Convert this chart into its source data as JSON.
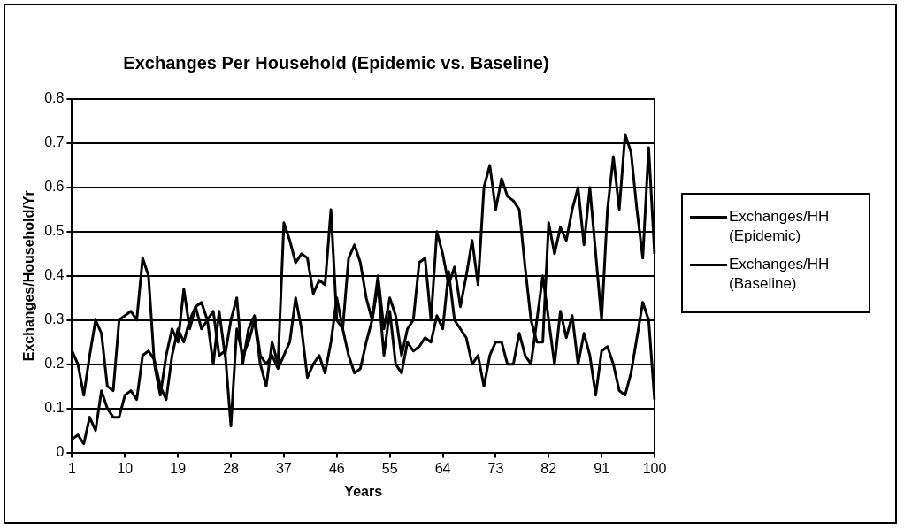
{
  "chart_data": {
    "type": "line",
    "title": "Exchanges Per Household (Epidemic vs. Baseline)",
    "xlabel": "Years",
    "ylabel": "Exchanges/Household/Yr",
    "categories": [
      "1",
      null,
      null,
      null,
      null,
      null,
      null,
      null,
      null,
      "10",
      null,
      null,
      null,
      null,
      null,
      null,
      null,
      null,
      "19",
      null,
      null,
      null,
      null,
      null,
      null,
      null,
      null,
      "28",
      null,
      null,
      null,
      null,
      null,
      null,
      null,
      null,
      "37",
      null,
      null,
      null,
      null,
      null,
      null,
      null,
      null,
      "46",
      null,
      null,
      null,
      null,
      null,
      null,
      null,
      null,
      "55",
      null,
      null,
      null,
      null,
      null,
      null,
      null,
      null,
      "64",
      null,
      null,
      null,
      null,
      null,
      null,
      null,
      null,
      "73",
      null,
      null,
      null,
      null,
      null,
      null,
      null,
      null,
      "82",
      null,
      null,
      null,
      null,
      null,
      null,
      null,
      null,
      "91",
      null,
      null,
      null,
      null,
      null,
      null,
      null,
      null,
      "100"
    ],
    "series": [
      {
        "name": "Exchanges/HH (Epidemic)",
        "color": "#000000",
        "values": [
          0.03,
          0.04,
          0.02,
          0.08,
          0.05,
          0.14,
          0.1,
          0.08,
          0.08,
          0.13,
          0.14,
          0.12,
          0.22,
          0.23,
          0.21,
          0.15,
          0.12,
          0.22,
          0.28,
          0.25,
          0.3,
          0.33,
          0.28,
          0.3,
          0.32,
          0.22,
          0.23,
          0.06,
          0.28,
          0.22,
          0.25,
          0.3,
          0.2,
          0.15,
          0.25,
          0.2,
          0.52,
          0.48,
          0.43,
          0.45,
          0.44,
          0.36,
          0.39,
          0.38,
          0.55,
          0.3,
          0.28,
          0.44,
          0.47,
          0.43,
          0.35,
          0.3,
          0.4,
          0.28,
          0.35,
          0.31,
          0.22,
          0.28,
          0.3,
          0.43,
          0.44,
          0.3,
          0.5,
          0.45,
          0.38,
          0.42,
          0.33,
          0.4,
          0.48,
          0.38,
          0.6,
          0.65,
          0.55,
          0.62,
          0.58,
          0.57,
          0.55,
          0.42,
          0.3,
          0.25,
          0.25,
          0.52,
          0.45,
          0.51,
          0.48,
          0.55,
          0.6,
          0.47,
          0.6,
          0.45,
          0.3,
          0.55,
          0.67,
          0.55,
          0.72,
          0.68,
          0.55,
          0.44,
          0.69,
          0.45
        ]
      },
      {
        "name": "Exchanges/HH (Baseline)",
        "color": "#000000",
        "values": [
          0.23,
          0.2,
          0.13,
          0.22,
          0.3,
          0.27,
          0.15,
          0.14,
          0.3,
          0.31,
          0.32,
          0.3,
          0.44,
          0.4,
          0.2,
          0.13,
          0.22,
          0.28,
          0.25,
          0.37,
          0.28,
          0.33,
          0.34,
          0.3,
          0.2,
          0.32,
          0.22,
          0.3,
          0.35,
          0.2,
          0.28,
          0.31,
          0.22,
          0.2,
          0.22,
          0.19,
          0.22,
          0.25,
          0.35,
          0.28,
          0.17,
          0.2,
          0.22,
          0.18,
          0.25,
          0.35,
          0.28,
          0.22,
          0.18,
          0.19,
          0.25,
          0.3,
          0.38,
          0.22,
          0.32,
          0.2,
          0.18,
          0.25,
          0.23,
          0.24,
          0.26,
          0.25,
          0.31,
          0.28,
          0.41,
          0.3,
          0.28,
          0.26,
          0.2,
          0.22,
          0.15,
          0.22,
          0.25,
          0.25,
          0.2,
          0.2,
          0.27,
          0.22,
          0.2,
          0.3,
          0.4,
          0.3,
          0.2,
          0.32,
          0.26,
          0.31,
          0.2,
          0.27,
          0.22,
          0.13,
          0.23,
          0.24,
          0.2,
          0.14,
          0.13,
          0.18,
          0.26,
          0.34,
          0.3,
          0.12
        ]
      }
    ],
    "ylim": [
      0,
      0.8
    ],
    "yticks": [
      0,
      0.1,
      0.2,
      0.3,
      0.4,
      0.5,
      0.6,
      0.7,
      0.8
    ],
    "grid": "y",
    "legend": "right",
    "marker": "none",
    "line_style": "solid"
  }
}
